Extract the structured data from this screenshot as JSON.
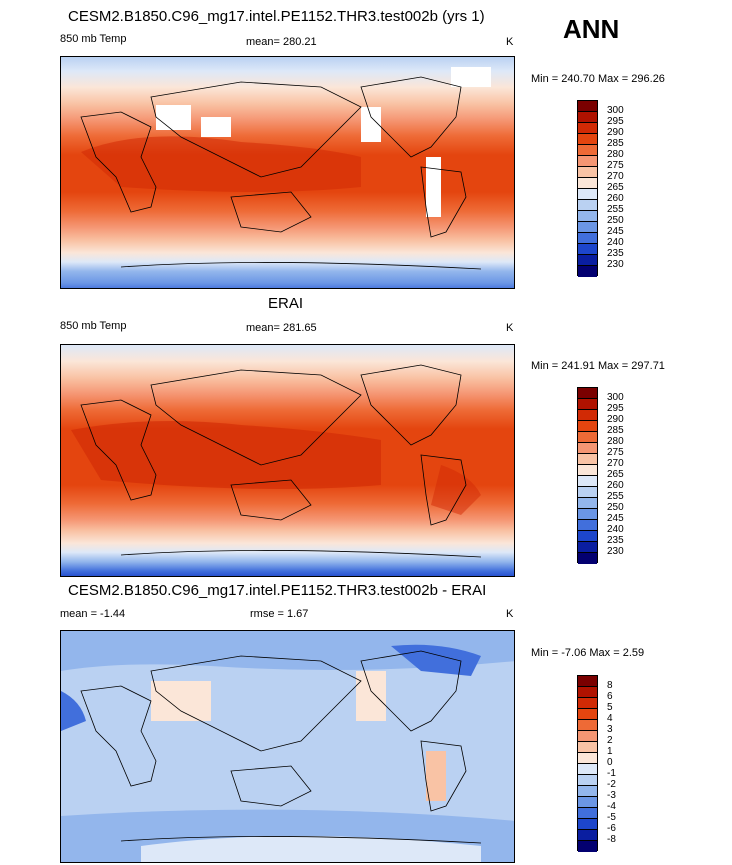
{
  "header": {
    "ann_label": "ANN"
  },
  "panels": [
    {
      "title": "CESM2.B1850.C96_mg17.intel.PE1152.THR3.test002b (yrs 1)",
      "left_label": "850 mb Temp",
      "center_label": "mean= 280.21",
      "units": "K",
      "minmax": "Min = 240.70 Max = 296.26",
      "colorbar_levels": [
        "300",
        "295",
        "290",
        "285",
        "280",
        "275",
        "270",
        "265",
        "260",
        "255",
        "250",
        "245",
        "240",
        "235",
        "230"
      ]
    },
    {
      "title": "ERAI",
      "left_label": "850 mb Temp",
      "center_label": "mean= 281.65",
      "units": "K",
      "minmax": "Min = 241.91 Max = 297.71",
      "colorbar_levels": [
        "300",
        "295",
        "290",
        "285",
        "280",
        "275",
        "270",
        "265",
        "260",
        "255",
        "250",
        "245",
        "240",
        "235",
        "230"
      ]
    },
    {
      "title": "CESM2.B1850.C96_mg17.intel.PE1152.THR3.test002b - ERAI",
      "left_label": "mean =  -1.44",
      "center_label": "rmse =   1.67",
      "units": "K",
      "minmax": "Min =  -7.06 Max =   2.59",
      "colorbar_levels": [
        "8",
        "6",
        "5",
        "4",
        "3",
        "2",
        "1",
        "0",
        "-1",
        "-2",
        "-3",
        "-4",
        "-5",
        "-6",
        "-8"
      ]
    }
  ],
  "colorbar_colors": [
    "#7a0000",
    "#b01200",
    "#d12a05",
    "#e4450f",
    "#ee6a36",
    "#f59673",
    "#f9c3a5",
    "#fbe6d8",
    "#dde8f8",
    "#bad1f2",
    "#93b6ec",
    "#6b96e5",
    "#416fdc",
    "#1d46cb",
    "#0a1ea0",
    "#030070"
  ]
}
